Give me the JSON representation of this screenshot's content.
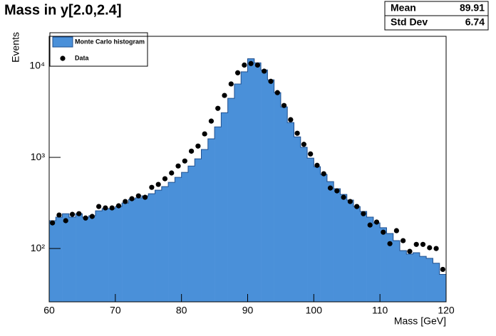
{
  "chart_data": {
    "type": "histogram",
    "title": "Mass in y[2.0,2.4]",
    "x_label": "Mass [GeV]",
    "y_label": "Events",
    "bins": [
      60,
      61,
      62,
      63,
      64,
      65,
      66,
      67,
      68,
      69,
      70,
      71,
      72,
      73,
      74,
      75,
      76,
      77,
      78,
      79,
      80,
      81,
      82,
      83,
      84,
      85,
      86,
      87,
      88,
      89,
      90,
      91,
      92,
      93,
      94,
      95,
      96,
      97,
      98,
      99,
      100,
      101,
      102,
      103,
      104,
      105,
      106,
      107,
      108,
      109,
      110,
      111,
      112,
      113,
      114,
      115,
      116,
      117,
      118,
      119,
      120
    ],
    "series": [
      {
        "name": "Monte Carlo histogram",
        "color": "#4a90d9",
        "style": "fill",
        "values": [
          202,
          221,
          241,
          221,
          241,
          221,
          229,
          259,
          274,
          274,
          289,
          316,
          346,
          359,
          378,
          399,
          437,
          478,
          532,
          604,
          685,
          804,
          963,
          1220,
          1600,
          2160,
          3090,
          4440,
          6390,
          8680,
          12100,
          10900,
          9100,
          7100,
          5130,
          3580,
          2410,
          1680,
          1290,
          982,
          790,
          650,
          542,
          453,
          392,
          340,
          289,
          255,
          221,
          191,
          169,
          146,
          122,
          95,
          87,
          90,
          82,
          78,
          69,
          52
        ]
      },
      {
        "name": "Data",
        "color": "#000000",
        "style": "markers",
        "values": [
          191,
          233,
          202,
          237,
          241,
          216,
          225,
          289,
          279,
          279,
          294,
          328,
          352,
          378,
          365,
          469,
          505,
          583,
          674,
          804,
          912,
          1170,
          1330,
          1810,
          2500,
          3450,
          4780,
          6390,
          8470,
          10300,
          10700,
          10300,
          8830,
          6830,
          5130,
          3710,
          2590,
          1840,
          1390,
          1090,
          818,
          661,
          461,
          429,
          365,
          328,
          289,
          241,
          181,
          195,
          151,
          113,
          157,
          122,
          93,
          111,
          111,
          102,
          100,
          59
        ]
      }
    ],
    "xlim": [
      60,
      120
    ],
    "xticks": [
      60,
      70,
      80,
      90,
      100,
      110,
      120
    ],
    "ylim": [
      26,
      21300
    ],
    "yscale": "log",
    "yticks": [
      {
        "value": 100,
        "label": "10²"
      },
      {
        "value": 1000,
        "label": "10³"
      },
      {
        "value": 10000,
        "label": "10⁴"
      }
    ],
    "legend": "top-left",
    "stats": [
      {
        "label": "Mean",
        "value": 89.91
      },
      {
        "label": "Std Dev",
        "value": 6.74
      }
    ]
  }
}
